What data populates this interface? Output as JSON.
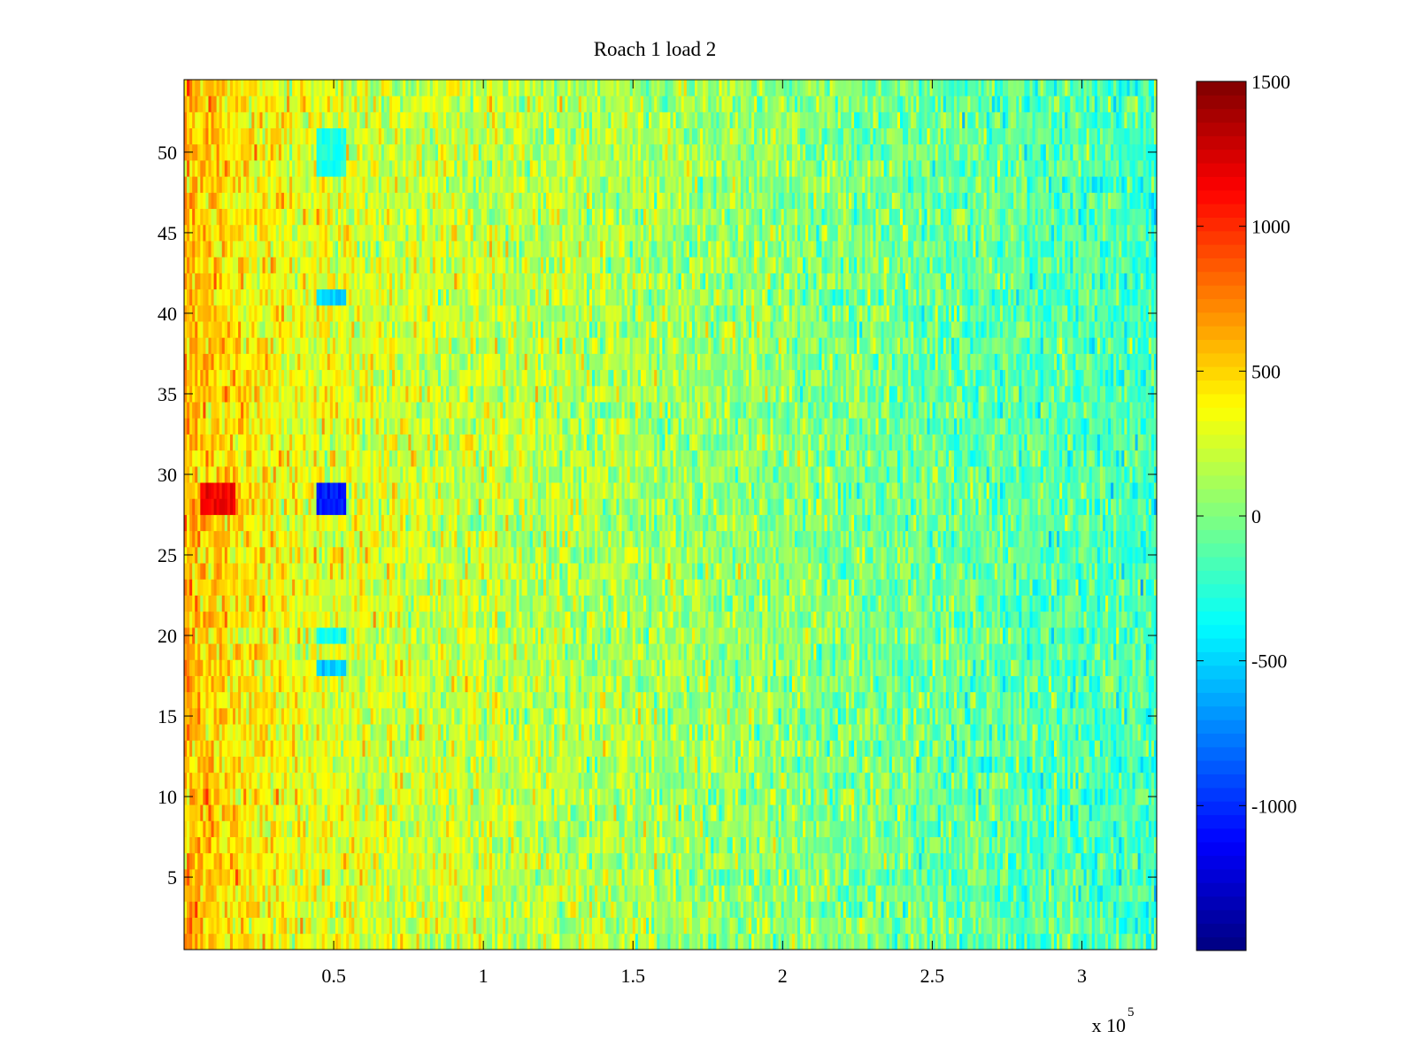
{
  "chart_data": {
    "type": "heatmap",
    "title": "Roach 1 load 2",
    "xlabel": "",
    "ylabel": "",
    "x_exponent_label": "x 10",
    "x_exponent_power": "5",
    "xlim": [
      0,
      3.25
    ],
    "ylim": [
      0.5,
      54.5
    ],
    "x_ticks": [
      0.5,
      1,
      1.5,
      2,
      2.5,
      3
    ],
    "x_tick_labels": [
      "0.5",
      "1",
      "1.5",
      "2",
      "2.5",
      "3"
    ],
    "y_ticks": [
      5,
      10,
      15,
      20,
      25,
      30,
      35,
      40,
      45,
      50
    ],
    "y_tick_labels": [
      "5",
      "10",
      "15",
      "20",
      "25",
      "30",
      "35",
      "40",
      "45",
      "50"
    ],
    "rows": 54,
    "colormap": "jet",
    "clim": [
      -1500,
      1500
    ],
    "colorbar_ticks": [
      1500,
      1000,
      500,
      0,
      -500,
      -1000
    ],
    "colorbar_tick_labels": [
      "1500",
      "1000",
      "500",
      "0",
      "-500",
      "-1000"
    ],
    "trend": {
      "x": [
        0,
        0.2,
        0.4,
        0.6,
        1.0,
        1.5,
        2.0,
        2.5,
        3.0,
        3.25
      ],
      "mean": [
        600,
        420,
        320,
        260,
        200,
        120,
        40,
        -60,
        -140,
        -180
      ]
    },
    "hotspots": [
      {
        "x": [
          0.05,
          0.17
        ],
        "y": [
          27.5,
          29.5
        ],
        "value": 1150
      },
      {
        "x": [
          0.44,
          0.54
        ],
        "y": [
          27.5,
          29.5
        ],
        "value": -1050
      },
      {
        "x": [
          0.44,
          0.54
        ],
        "y": [
          40.5,
          41.5
        ],
        "value": -500
      },
      {
        "x": [
          0.44,
          0.54
        ],
        "y": [
          17.5,
          18.5
        ],
        "value": -500
      },
      {
        "x": [
          0.44,
          0.54
        ],
        "y": [
          19.5,
          20.5
        ],
        "value": -350
      },
      {
        "x": [
          0.44,
          0.54
        ],
        "y": [
          48.5,
          51.5
        ],
        "value": -300
      }
    ],
    "grid": false,
    "legend": "colorbar-right"
  },
  "colors": {
    "axes": "#000000",
    "background": "#ffffff"
  }
}
